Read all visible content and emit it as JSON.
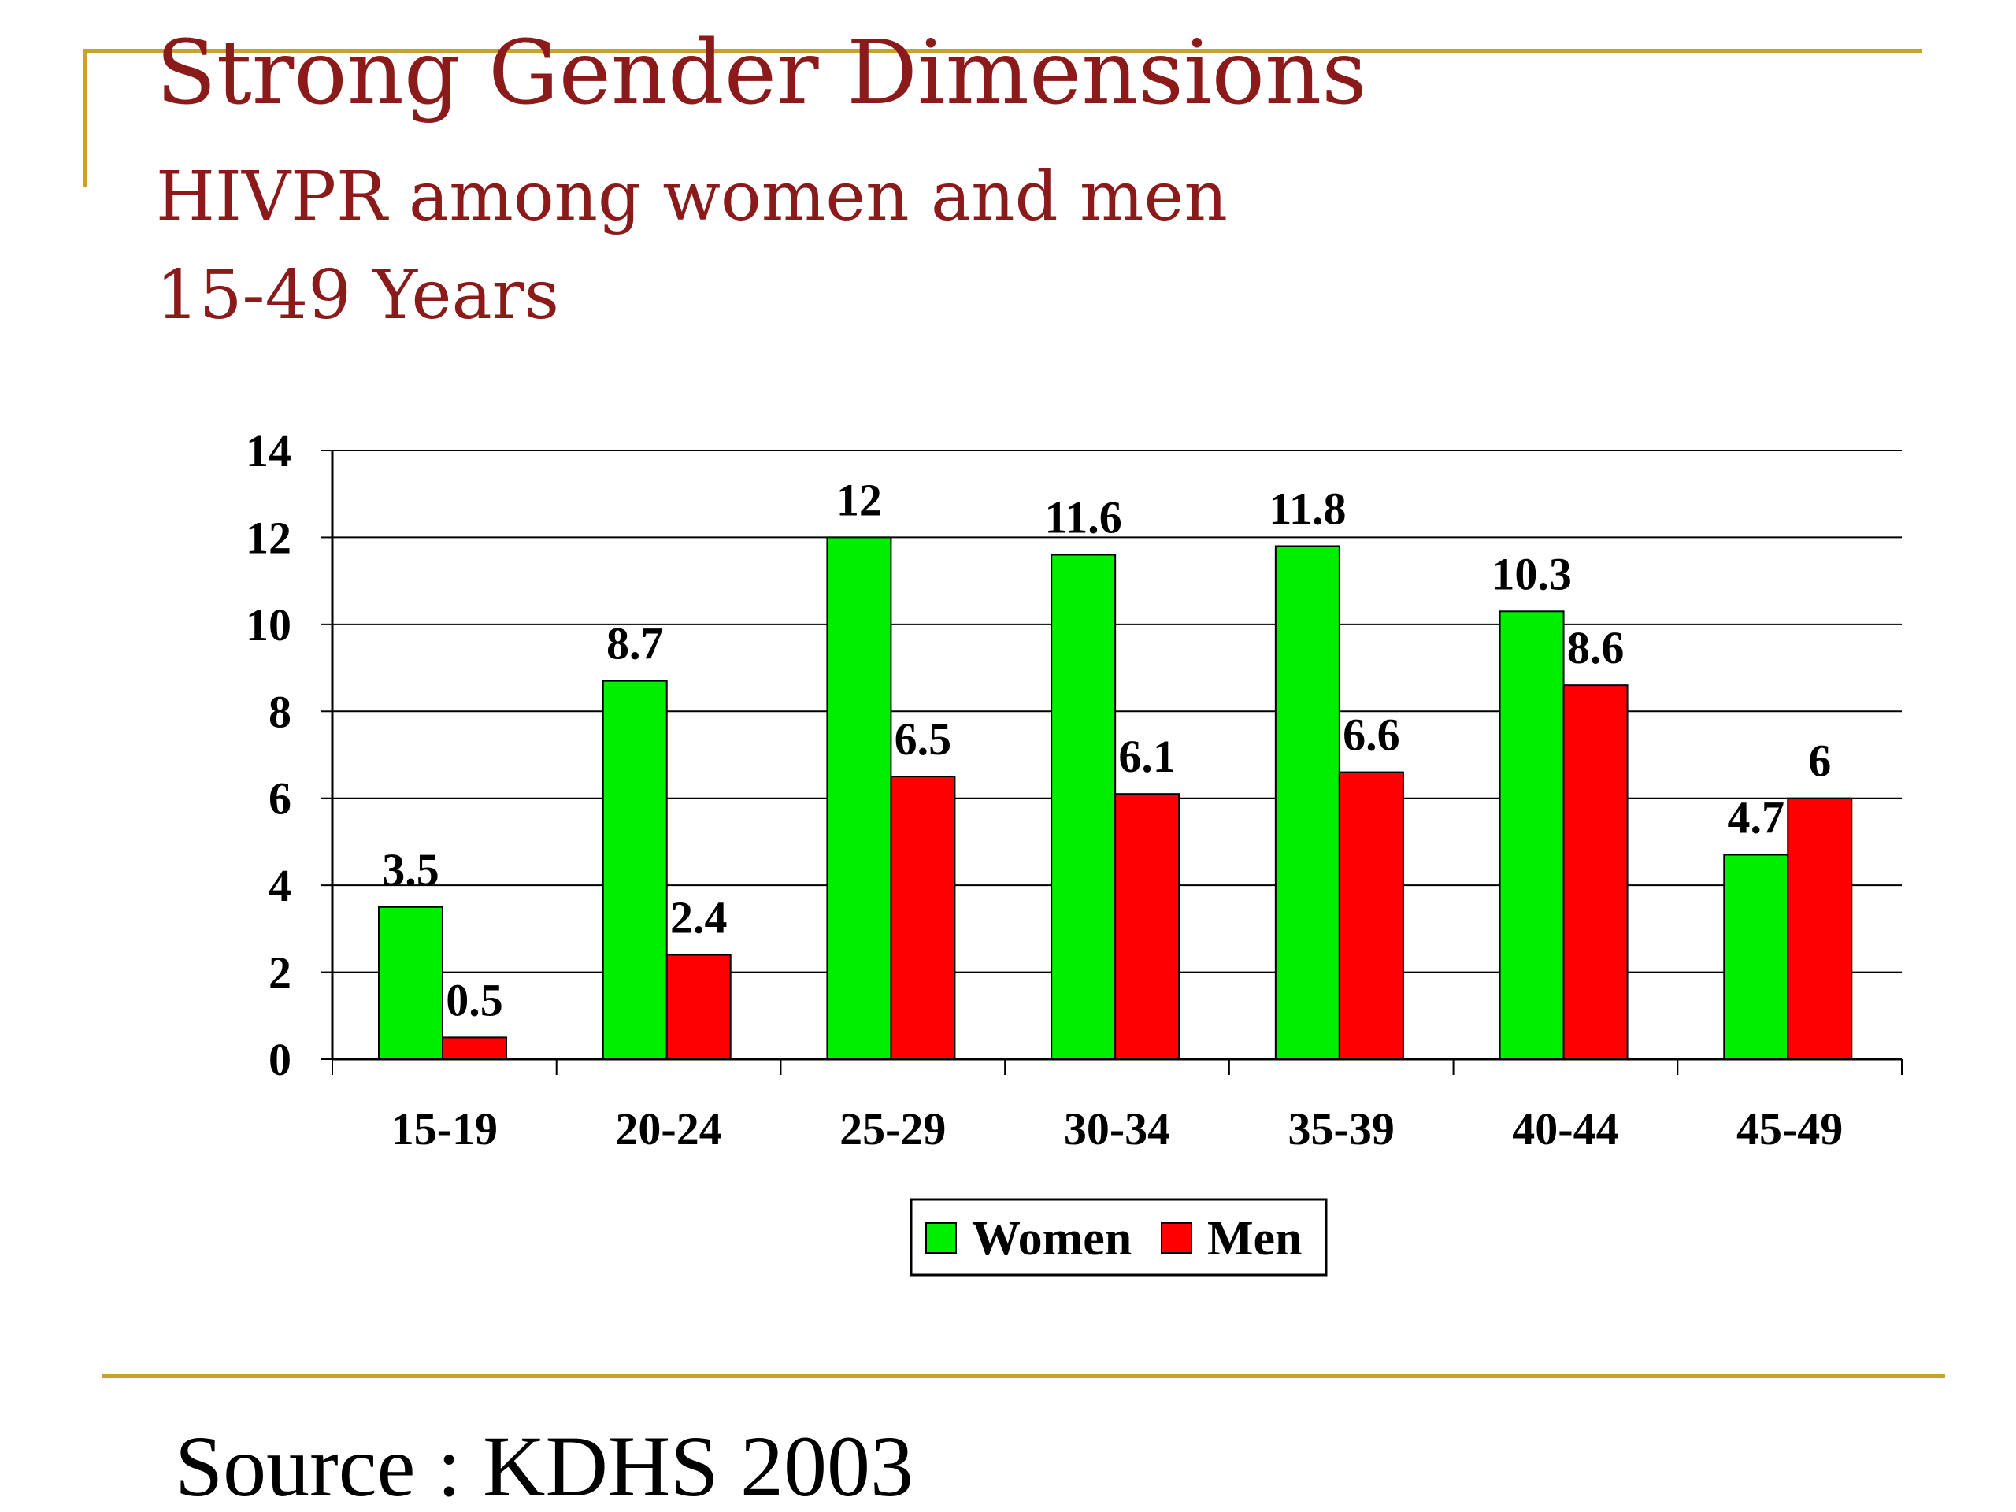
{
  "slide": {
    "title": "Strong Gender Dimensions",
    "subtitle_line1": "HIVPR among women and men",
    "subtitle_line2": "15-49 Years",
    "source": "Source : KDHS 2003"
  },
  "colors": {
    "accent_rule": "#c9a227",
    "title": "#8b1a1a",
    "women": "#00ee00",
    "men": "#ff0000"
  },
  "chart_data": {
    "type": "bar",
    "categories": [
      "15-19",
      "20-24",
      "25-29",
      "30-34",
      "35-39",
      "40-44",
      "45-49"
    ],
    "series": [
      {
        "name": "Women",
        "values": [
          3.5,
          8.7,
          12,
          11.6,
          11.8,
          10.3,
          4.7
        ],
        "labels": [
          "3.5",
          "8.7",
          "12",
          "11.6",
          "11.8",
          "10.3",
          "4.7"
        ]
      },
      {
        "name": "Men",
        "values": [
          0.5,
          2.4,
          6.5,
          6.1,
          6.6,
          8.6,
          6
        ],
        "labels": [
          "0.5",
          "2.4",
          "6.5",
          "6.1",
          "6.6",
          "8.6",
          "6"
        ]
      }
    ],
    "ylim": [
      0,
      14
    ],
    "yticks": [
      "0",
      "2",
      "4",
      "6",
      "8",
      "10",
      "12",
      "14"
    ],
    "grid": true,
    "legend_position": "bottom-center",
    "xlabel": "",
    "ylabel": ""
  }
}
